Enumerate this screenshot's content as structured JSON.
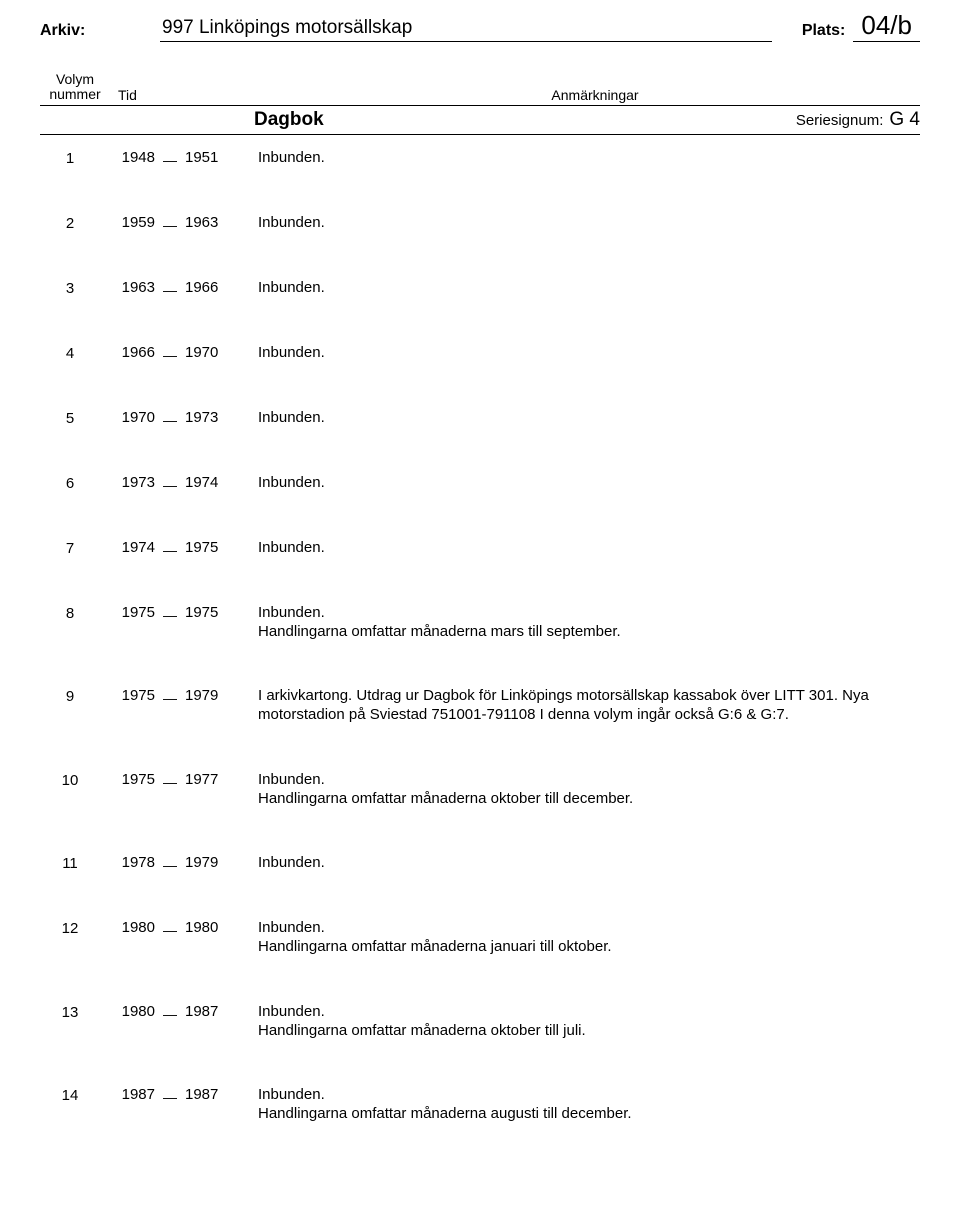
{
  "header": {
    "arkiv_label": "Arkiv:",
    "arkiv_title": "997 Linköpings motorsällskap",
    "plats_label": "Plats:",
    "plats_value": "04/b",
    "volym_nummer_label_l1": "Volym",
    "volym_nummer_label_l2": "nummer",
    "tid_label": "Tid",
    "anmarkningar_label": "Anmärkningar"
  },
  "section": {
    "title": "Dagbok",
    "serie_label": "Seriesignum:",
    "serie_value": "G 4"
  },
  "rows": [
    {
      "num": "1",
      "y1": "1948",
      "y2": "1951",
      "text": "Inbunden."
    },
    {
      "num": "2",
      "y1": "1959",
      "y2": "1963",
      "text": "Inbunden."
    },
    {
      "num": "3",
      "y1": "1963",
      "y2": "1966",
      "text": "Inbunden."
    },
    {
      "num": "4",
      "y1": "1966",
      "y2": "1970",
      "text": "Inbunden."
    },
    {
      "num": "5",
      "y1": "1970",
      "y2": "1973",
      "text": "Inbunden."
    },
    {
      "num": "6",
      "y1": "1973",
      "y2": "1974",
      "text": "Inbunden."
    },
    {
      "num": "7",
      "y1": "1974",
      "y2": "1975",
      "text": "Inbunden."
    },
    {
      "num": "8",
      "y1": "1975",
      "y2": "1975",
      "text": "Inbunden.\nHandlingarna omfattar månaderna mars till september."
    },
    {
      "num": "9",
      "y1": "1975",
      "y2": "1979",
      "text": "I arkivkartong. Utdrag ur Dagbok för Linköpings motorsällskap kassabok över LITT 301. Nya motorstadion på Sviestad 751001-791108 I denna volym ingår också G:6 & G:7."
    },
    {
      "num": "10",
      "y1": "1975",
      "y2": "1977",
      "text": "Inbunden.\nHandlingarna omfattar månaderna oktober till december."
    },
    {
      "num": "11",
      "y1": "1978",
      "y2": "1979",
      "text": "Inbunden."
    },
    {
      "num": "12",
      "y1": "1980",
      "y2": "1980",
      "text": "Inbunden.\nHandlingarna omfattar månaderna januari till oktober."
    },
    {
      "num": "13",
      "y1": "1980",
      "y2": "1987",
      "text": "Inbunden.\nHandlingarna omfattar månaderna oktober till juli."
    },
    {
      "num": "14",
      "y1": "1987",
      "y2": "1987",
      "text": "Inbunden.\nHandlingarna omfattar månaderna augusti till december."
    }
  ]
}
